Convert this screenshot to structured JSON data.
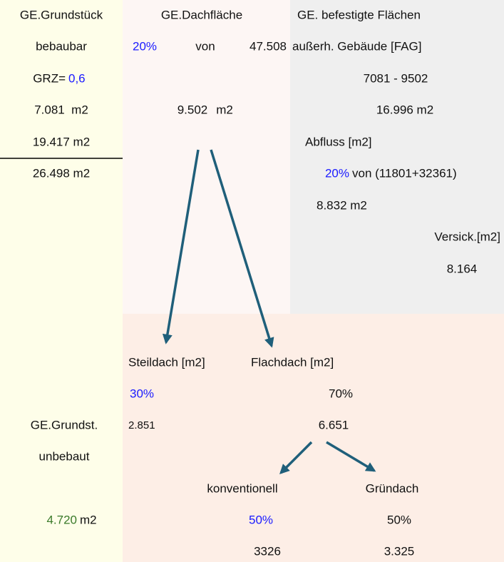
{
  "cells": [
    "GE.Grundstück",
    "GE.Dachfläche",
    "GE. befestigte Flächen",
    "bebaubar",
    "20%",
    "von",
    "47.508",
    "außerh. Gebäude [FAG]",
    "GRZ=",
    "0,6",
    "7081 - 9502",
    "7.081  m2",
    "9.502",
    "m2",
    "16.996 m2",
    "19.417 m2",
    "Abfluss [m2]",
    "26.498 m2",
    "20%",
    "von (11801+32361)",
    "8.832 m2",
    "Versick.[m2]",
    "8.164",
    "Steildach [m2]",
    "Flachdach [m2]",
    "30%",
    "70%",
    "GE.Grundst.",
    "2.851",
    "6.651",
    "unbebaut",
    "konventionell",
    "Gründach",
    "4.720",
    "m2",
    "50%",
    "50%",
    "3326",
    "3.325"
  ]
}
